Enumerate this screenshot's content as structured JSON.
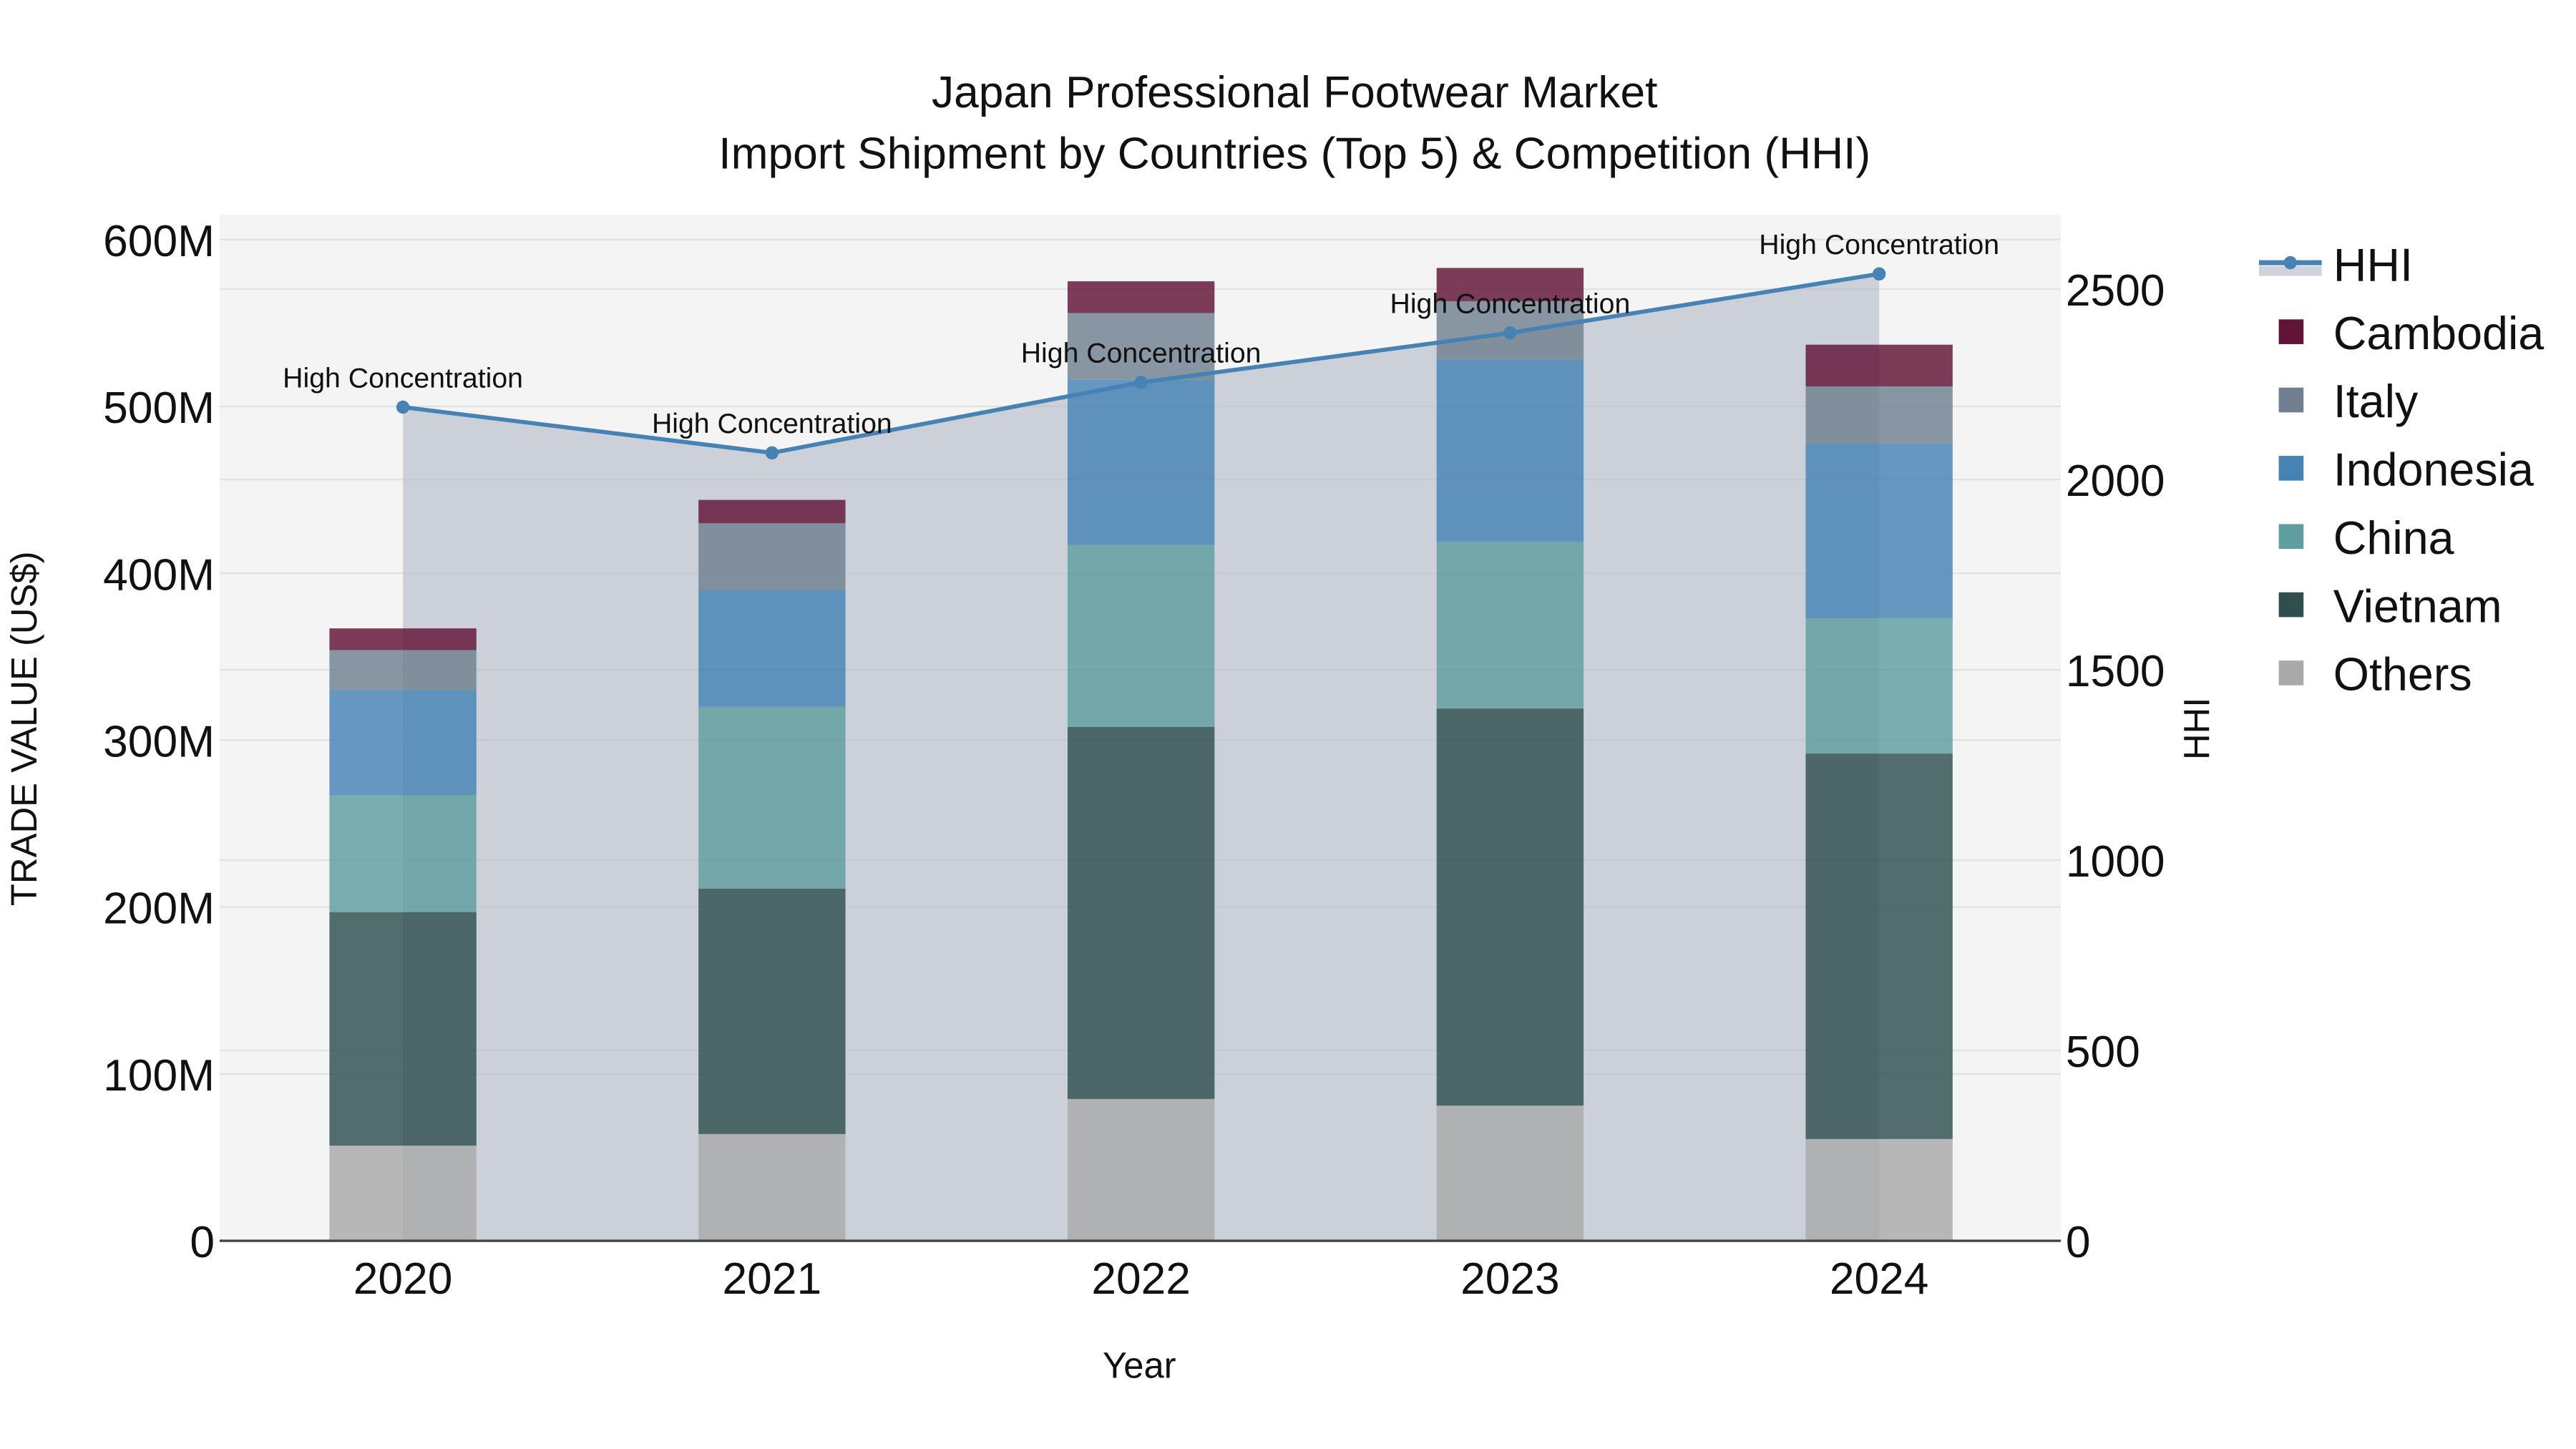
{
  "chart_data": {
    "type": "bar",
    "stacked": true,
    "title": "Japan Professional Footwear Market",
    "subtitle": "Import Shipment by Countries (Top 5) & Competition (HHI)",
    "xlabel": "Year",
    "ylabel": "TRADE VALUE (US$)",
    "y2label": "HHI",
    "categories": [
      "2020",
      "2021",
      "2022",
      "2023",
      "2024"
    ],
    "ylim": [
      0,
      610000000
    ],
    "y2lim": [
      0,
      2640
    ],
    "yticks": [
      "0",
      "100M",
      "200M",
      "300M",
      "400M",
      "500M",
      "600M"
    ],
    "y2ticks": [
      "0",
      "500",
      "1000",
      "1500",
      "2000",
      "2500"
    ],
    "series": [
      {
        "name": "Others",
        "color": "#A9A9A9",
        "values": [
          57000000,
          64000000,
          85000000,
          81000000,
          61000000
        ]
      },
      {
        "name": "Vietnam",
        "color": "#2F4F4F",
        "values": [
          140000000,
          147000000,
          223000000,
          238000000,
          231000000
        ]
      },
      {
        "name": "China",
        "color": "#5F9EA0",
        "values": [
          70000000,
          109000000,
          109000000,
          100000000,
          81000000
        ]
      },
      {
        "name": "Indonesia",
        "color": "#4682B4",
        "values": [
          63000000,
          70000000,
          99000000,
          109000000,
          105000000
        ]
      },
      {
        "name": "Italy",
        "color": "#708090",
        "values": [
          24000000,
          40000000,
          40000000,
          35000000,
          34000000
        ]
      },
      {
        "name": "Cambodia",
        "color": "#621436",
        "values": [
          13000000,
          14000000,
          19000000,
          20000000,
          25000000
        ]
      }
    ],
    "line_series": {
      "name": "HHI",
      "axis": "y2",
      "color": "#4682B4",
      "fill": "rgba(176,184,198,0.6)",
      "values": [
        2190,
        2070,
        2255,
        2385,
        2540
      ],
      "annotations": [
        "High Concentration",
        "High Concentration",
        "High Concentration",
        "High Concentration",
        "High Concentration"
      ]
    },
    "legend": {
      "position": "right",
      "entries": [
        "HHI",
        "Cambodia",
        "Italy",
        "Indonesia",
        "China",
        "Vietnam",
        "Others"
      ]
    },
    "grid": true
  }
}
